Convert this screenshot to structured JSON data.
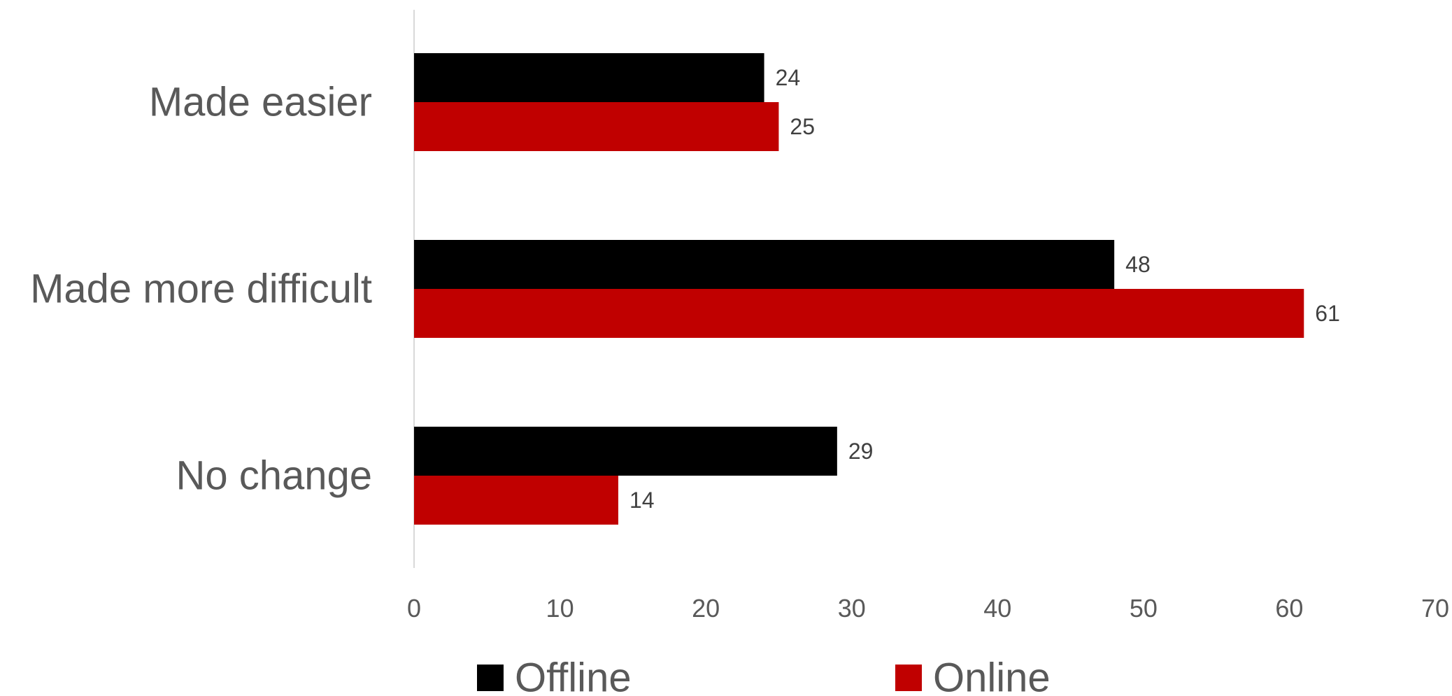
{
  "chart_data": {
    "type": "bar",
    "orientation": "horizontal",
    "title": "",
    "xlabel": "",
    "ylabel": "",
    "categories": [
      "Made easier",
      "Made more difficult",
      "No change"
    ],
    "series": [
      {
        "name": "Offline",
        "color": "#000000",
        "values": [
          24,
          48,
          29
        ]
      },
      {
        "name": "Online",
        "color": "#C00000",
        "values": [
          25,
          61,
          14
        ]
      }
    ],
    "xlim": [
      0,
      70
    ],
    "xticks": [
      0,
      10,
      20,
      30,
      40,
      50,
      60,
      70
    ],
    "grid": false,
    "data_labels": true,
    "legend_position": "bottom"
  }
}
